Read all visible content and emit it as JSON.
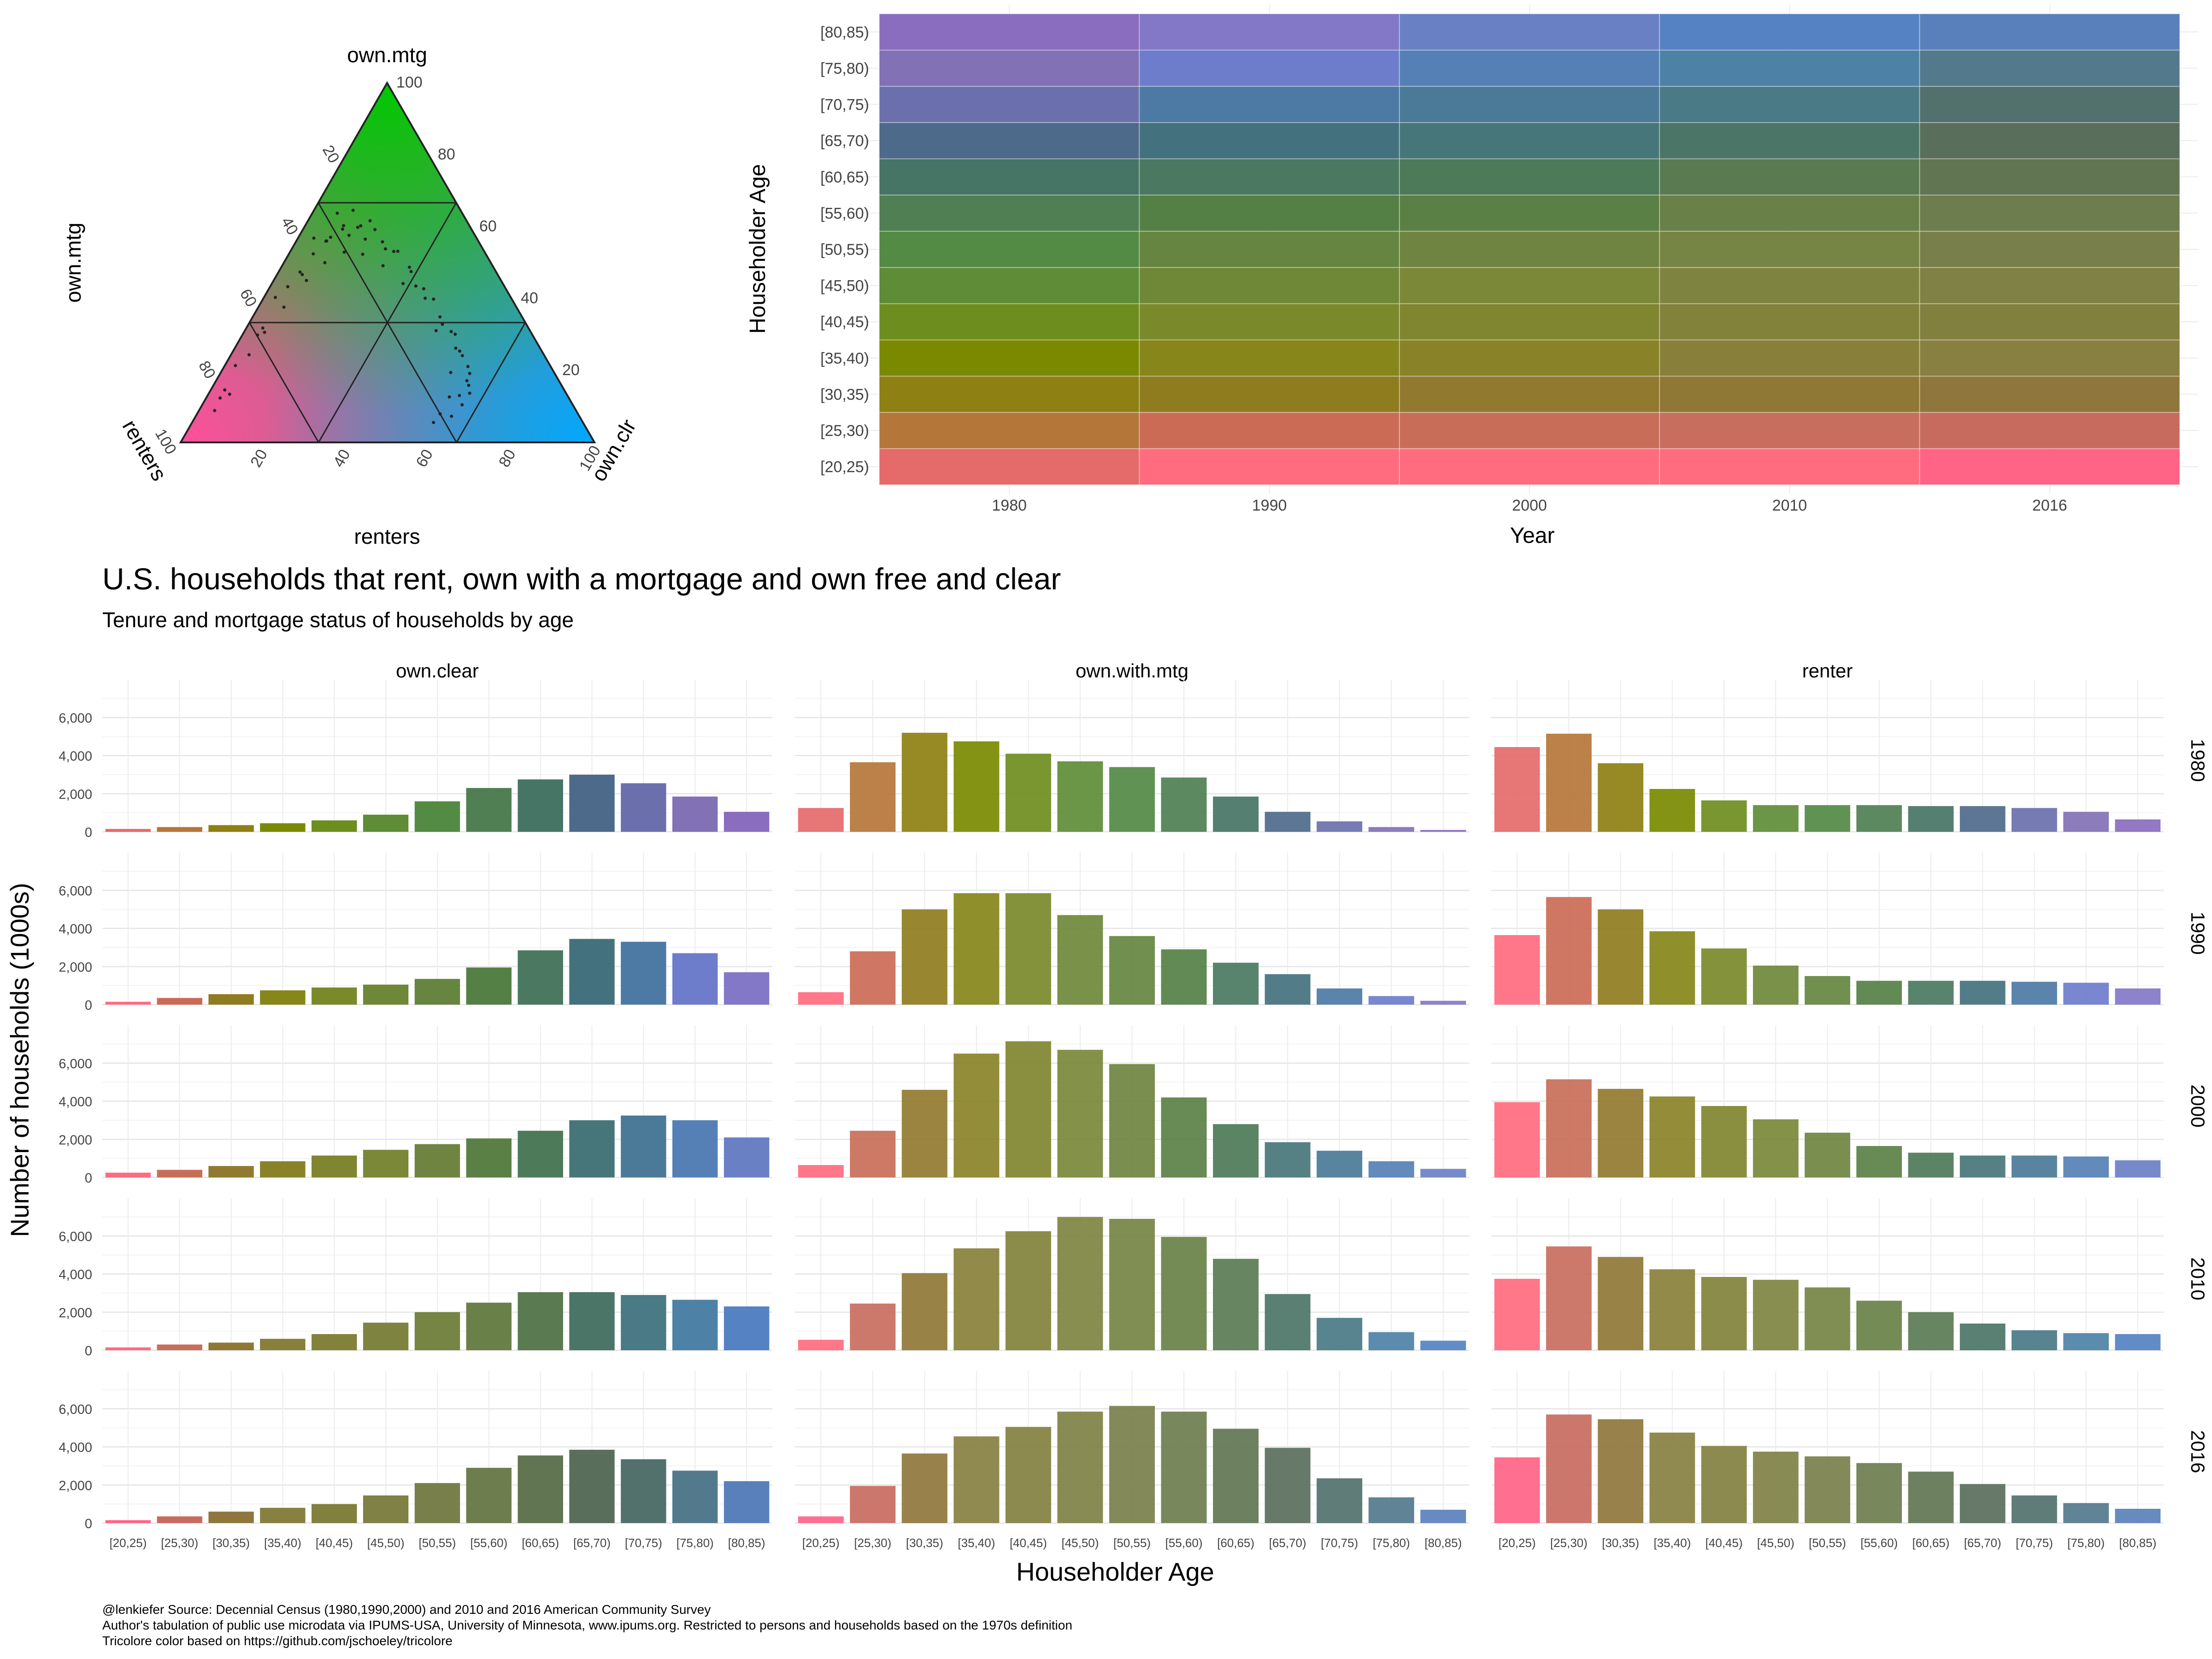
{
  "heading": {
    "title": "U.S. households that rent, own with a mortgage and own free and clear",
    "subtitle": "Tenure and mortgage status of households by age"
  },
  "caption": {
    "line1": "@lenkiefer Source: Decennial Census (1980,1990,2000) and 2010 and 2016 American Community Survey",
    "line2": "Author's tabulation of public use microdata via IPUMS-USA, University of Minnesota, www.ipums.org. Restricted to persons and households based on the 1970s definition",
    "line3": "Tricolore color based on https://github.com/jschoeley/tricolore"
  },
  "colors": {
    "green": "#00c800",
    "blue": "#00a8ff",
    "pink": "#ff4f9a"
  },
  "chart_data": [
    {
      "type": "ternary",
      "top_label": "own.mtg",
      "left_label": "renters",
      "right_label": "own.clr",
      "left_axis_label": "own.mtg",
      "bottom_axis_label": "renters",
      "ticks": [
        "20",
        "40",
        "60",
        "80",
        "100"
      ]
    },
    {
      "type": "heatmap",
      "xlabel": "Year",
      "ylabel": "Householder Age",
      "x": [
        "1980",
        "1990",
        "2000",
        "2010",
        "2016"
      ],
      "y": [
        "[20,25)",
        "[25,30)",
        "[30,35)",
        "[35,40)",
        "[40,45)",
        "[45,50)",
        "[50,55)",
        "[55,60)",
        "[60,65)",
        "[65,70)",
        "[70,75)",
        "[75,80)",
        "[80,85)"
      ],
      "colors": [
        [
          "#e56a6a",
          "#ff6b7f",
          "#ff6b7f",
          "#ff6b7f",
          "#ff6385"
        ],
        [
          "#b5763a",
          "#cb6b56",
          "#c86e58",
          "#c86e5e",
          "#c86b5f"
        ],
        [
          "#8e8012",
          "#8f7c1e",
          "#917a30",
          "#8f7736",
          "#8f763c"
        ],
        [
          "#7a8a00",
          "#86861a",
          "#8a8228",
          "#88803a",
          "#888041"
        ],
        [
          "#6e8d1f",
          "#7a8a2a",
          "#808530",
          "#82823b",
          "#82803f"
        ],
        [
          "#5e8c37",
          "#6e8838",
          "#7a8838",
          "#7e8440",
          "#7f8145"
        ],
        [
          "#538a44",
          "#658540",
          "#6e8440",
          "#768444",
          "#787f4a"
        ],
        [
          "#4f7f52",
          "#558045",
          "#5b8046",
          "#698148",
          "#6e7d4e"
        ],
        [
          "#467465",
          "#4a7860",
          "#4d7a58",
          "#5a7b52",
          "#617552"
        ],
        [
          "#4e6a8a",
          "#43727e",
          "#47767a",
          "#4b7566",
          "#5a6e5c"
        ],
        [
          "#6b70ad",
          "#4c7aa5",
          "#4a7a98",
          "#497a86",
          "#52716d"
        ],
        [
          "#8271b5",
          "#6e7ccc",
          "#5580b5",
          "#4d82a6",
          "#537a8c"
        ],
        [
          "#8a6dbf",
          "#8377c8",
          "#6a80c5",
          "#5582c2",
          "#5a80bb"
        ]
      ]
    },
    {
      "type": "bar",
      "title": "",
      "xlabel": "Householder Age",
      "ylabel": "Number of households (1000s)",
      "ylim": [
        0,
        7500
      ],
      "yticks": [
        0,
        2000,
        4000,
        6000
      ],
      "ytick_labels": [
        "0",
        "2,000",
        "4,000",
        "6,000"
      ],
      "categories": [
        "[20,25)",
        "[25,30)",
        "[30,35)",
        "[35,40)",
        "[40,45)",
        "[45,50)",
        "[50,55)",
        "[55,60)",
        "[60,65)",
        "[65,70)",
        "[70,75)",
        "[75,80)",
        "[80,85)"
      ],
      "col_facets": [
        "own.clear",
        "own.with.mtg",
        "renter"
      ],
      "row_facets": [
        "1980",
        "1990",
        "2000",
        "2010",
        "2016"
      ],
      "values": {
        "own.clear": {
          "1980": [
            150,
            250,
            350,
            450,
            600,
            900,
            1600,
            2300,
            2750,
            3000,
            2550,
            1850,
            1050
          ],
          "1990": [
            150,
            350,
            550,
            750,
            900,
            1050,
            1350,
            1950,
            2850,
            3450,
            3300,
            2700,
            1700
          ],
          "2000": [
            250,
            400,
            600,
            850,
            1150,
            1450,
            1750,
            2050,
            2450,
            3000,
            3250,
            3000,
            2100
          ],
          "2010": [
            150,
            300,
            400,
            600,
            850,
            1450,
            2000,
            2500,
            3050,
            3050,
            2900,
            2650,
            2300
          ],
          "2016": [
            150,
            350,
            600,
            800,
            1000,
            1450,
            2100,
            2900,
            3550,
            3850,
            3350,
            2750,
            2200
          ]
        },
        "own.with.mtg": {
          "1980": [
            1250,
            3650,
            5200,
            4750,
            4100,
            3700,
            3400,
            2850,
            1850,
            1050,
            550,
            250,
            100
          ],
          "1990": [
            650,
            2800,
            5000,
            5850,
            5850,
            4700,
            3600,
            2900,
            2200,
            1600,
            850,
            450,
            200
          ],
          "2000": [
            650,
            2450,
            4600,
            6500,
            7150,
            6700,
            5950,
            4200,
            2800,
            1850,
            1400,
            850,
            450
          ],
          "2010": [
            550,
            2450,
            4050,
            5350,
            6250,
            7000,
            6900,
            5950,
            4800,
            2950,
            1700,
            950,
            500
          ],
          "2016": [
            350,
            1950,
            3650,
            4550,
            5050,
            5850,
            6150,
            5850,
            4950,
            3950,
            2350,
            1350,
            700
          ]
        },
        "renter": {
          "1980": [
            4450,
            5150,
            3600,
            2250,
            1650,
            1400,
            1400,
            1400,
            1350,
            1350,
            1250,
            1050,
            650
          ],
          "1990": [
            3650,
            5650,
            5000,
            3850,
            2950,
            2050,
            1500,
            1250,
            1250,
            1250,
            1200,
            1150,
            850
          ],
          "2000": [
            3950,
            5150,
            4650,
            4250,
            3750,
            3050,
            2350,
            1650,
            1300,
            1150,
            1150,
            1100,
            900
          ],
          "2010": [
            3750,
            5450,
            4900,
            4250,
            3850,
            3700,
            3300,
            2600,
            2000,
            1400,
            1050,
            900,
            850
          ],
          "2016": [
            3450,
            5700,
            5450,
            4750,
            4050,
            3750,
            3500,
            3150,
            2700,
            2050,
            1450,
            1050,
            750
          ]
        }
      },
      "colors": {
        "own.clear": {
          "1980": [
            "#e56a6a",
            "#b5763a",
            "#8e8012",
            "#7a8a00",
            "#6e8d1f",
            "#5e8c37",
            "#538a44",
            "#4f7f52",
            "#467465",
            "#4e6a8a",
            "#6b70ad",
            "#8271b5",
            "#8a6dbf"
          ],
          "1990": [
            "#ff6b7f",
            "#cb6b56",
            "#8f7c1e",
            "#86861a",
            "#7a8a2a",
            "#6e8838",
            "#658540",
            "#558045",
            "#4a7860",
            "#43727e",
            "#4c7aa5",
            "#6e7ccc",
            "#8377c8"
          ],
          "2000": [
            "#ff6b7f",
            "#c86e58",
            "#917a30",
            "#8a8228",
            "#808530",
            "#7a8838",
            "#6e8440",
            "#5b8046",
            "#4d7a58",
            "#47767a",
            "#4a7a98",
            "#5580b5",
            "#6a80c5"
          ],
          "2010": [
            "#ff6b7f",
            "#c86e5e",
            "#8f7736",
            "#88803a",
            "#82823b",
            "#7e8440",
            "#768444",
            "#698148",
            "#5a7b52",
            "#4b7566",
            "#497a86",
            "#4d82a6",
            "#5582c2"
          ],
          "2016": [
            "#ff6385",
            "#c86b5f",
            "#8f763c",
            "#888041",
            "#82803f",
            "#7f8145",
            "#787f4a",
            "#6e7d4e",
            "#617552",
            "#5a6e5c",
            "#52716d",
            "#537a8c",
            "#5a80bb"
          ]
        }
      }
    }
  ]
}
